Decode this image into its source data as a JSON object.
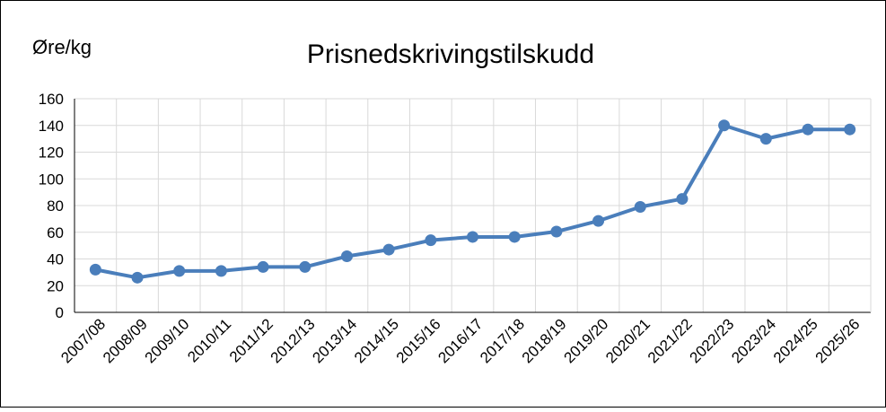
{
  "chart_data": {
    "type": "line",
    "title": "Prisnedskrivingstilskudd",
    "y_label": "Øre/kg",
    "categories": [
      "2007/08",
      "2008/09",
      "2009/10",
      "2010/11",
      "2011/12",
      "2012/13",
      "2013/14",
      "2014/15",
      "2015/16",
      "2016/17",
      "2017/18",
      "2018/19",
      "2019/20",
      "2020/21",
      "2021/22",
      "2022/23",
      "2023/24",
      "2024/25",
      "2025/26"
    ],
    "series": [
      {
        "name": "Prisnedskrivingstilskudd",
        "color": "#4a7ebb",
        "values": [
          32,
          26,
          31,
          31,
          34,
          34,
          42,
          47,
          54,
          56.5,
          56.5,
          60.5,
          68.5,
          79,
          85,
          140,
          130,
          137,
          137
        ]
      }
    ],
    "ylim": [
      0,
      160
    ],
    "yticks": [
      0,
      20,
      40,
      60,
      80,
      100,
      120,
      140,
      160
    ],
    "grid": true
  }
}
